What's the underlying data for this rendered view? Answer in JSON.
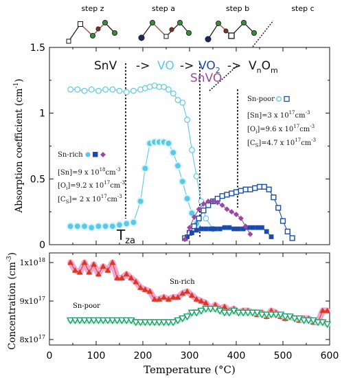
{
  "header": {
    "steps": [
      "step z",
      "step a",
      "step b",
      "step c"
    ]
  },
  "top_panel": {
    "reaction": {
      "snv": "SnV",
      "arrow1": "->",
      "vo": "VO",
      "arrow2": "->",
      "vo2": "VO",
      "vo2_sub": "2",
      "arrow3": "->",
      "vnom_v": "V",
      "vnom_n": "n",
      "vnom_o": "O",
      "vnom_m": "m",
      "snvo": "SnVO",
      "tza_t": "T",
      "tza_sub": "za"
    },
    "sn_poor_block": {
      "title": "Sn-poor",
      "lines": [
        "[Sn]=3 x 10",
        "[O",
        "]=9.6 x 10",
        "[C",
        "]=4.7 x 10"
      ],
      "sup": "17",
      "unit": "cm",
      "unit_sup": "-3",
      "oi_sub": "i",
      "cs_sub": "S"
    },
    "sn_rich_block": {
      "title": "Sn-rich",
      "sn_line": "[Sn]=9 x 10",
      "sn_sup": "18",
      "oi_line": "[O",
      "oi_sub": "i",
      "oi_rest": "]=9.2 x 10",
      "oi_sup": "17",
      "cs_line": "[C",
      "cs_sub": "S",
      "cs_rest": "]= 2 x 10",
      "cs_sup": "17",
      "unit": "cm",
      "unit_sup": "-3"
    }
  },
  "bottom_panel": {
    "label_rich": "Sn-rich",
    "label_poor": "Sn-poor"
  },
  "chart_data": [
    {
      "type": "scatter",
      "panel": "top",
      "xlim": [
        0,
        600
      ],
      "ylim": [
        0,
        1.5
      ],
      "yticks": [
        "0",
        "0.5",
        "1",
        "1.5"
      ],
      "ylabel": "Absorption coefficient  (cm",
      "ylabel_sup": "-1",
      "ylabel_end": ")",
      "series": [
        {
          "name": "VO Sn-poor",
          "color": "#5bc8e6",
          "marker": "open-circle",
          "x": [
            45,
            60,
            75,
            90,
            105,
            120,
            135,
            150,
            165,
            180,
            195,
            205,
            215,
            225,
            235,
            245,
            255,
            265,
            275,
            285,
            295,
            305,
            315,
            325,
            335,
            350
          ],
          "y": [
            1.18,
            1.18,
            1.17,
            1.18,
            1.17,
            1.18,
            1.18,
            1.17,
            1.16,
            1.17,
            1.18,
            1.19,
            1.2,
            1.21,
            1.2,
            1.2,
            1.18,
            1.15,
            1.1,
            1.08,
            0.95,
            0.72,
            0.52,
            0.33,
            0.2,
            0.12
          ]
        },
        {
          "name": "VO Sn-rich",
          "color": "#5bc8e6",
          "marker": "filled-circle",
          "x": [
            45,
            60,
            75,
            90,
            105,
            120,
            135,
            150,
            165,
            180,
            195,
            205,
            215,
            225,
            235,
            245,
            255,
            265,
            275,
            285,
            295,
            305,
            315
          ],
          "y": [
            0.14,
            0.14,
            0.14,
            0.13,
            0.14,
            0.14,
            0.14,
            0.15,
            0.16,
            0.17,
            0.33,
            0.58,
            0.77,
            0.78,
            0.78,
            0.78,
            0.77,
            0.7,
            0.6,
            0.48,
            0.35,
            0.24,
            0.16
          ]
        },
        {
          "name": "VO2 Sn-poor",
          "color": "#1b4ba8",
          "marker": "open-square",
          "x": [
            290,
            300,
            310,
            320,
            330,
            340,
            350,
            360,
            370,
            380,
            390,
            400,
            410,
            420,
            430,
            440,
            450,
            460,
            470,
            480,
            490,
            500,
            510,
            520
          ],
          "y": [
            0.05,
            0.09,
            0.14,
            0.2,
            0.26,
            0.3,
            0.33,
            0.35,
            0.37,
            0.38,
            0.39,
            0.4,
            0.41,
            0.42,
            0.42,
            0.43,
            0.44,
            0.44,
            0.42,
            0.36,
            0.28,
            0.18,
            0.1,
            0.05
          ]
        },
        {
          "name": "VO2 Sn-rich",
          "color": "#1b4ba8",
          "marker": "filled-square",
          "x": [
            295,
            305,
            315,
            325,
            335,
            345,
            355,
            365,
            375,
            385,
            395,
            405,
            415,
            425,
            435,
            445,
            455,
            465,
            475
          ],
          "y": [
            0.06,
            0.09,
            0.11,
            0.12,
            0.12,
            0.12,
            0.12,
            0.12,
            0.13,
            0.13,
            0.12,
            0.12,
            0.12,
            0.13,
            0.13,
            0.13,
            0.13,
            0.1,
            0.06
          ]
        },
        {
          "name": "SnVO",
          "color": "#9a4a9e",
          "marker": "filled-diamond",
          "x": [
            290,
            300,
            310,
            320,
            330,
            340,
            350,
            360,
            370,
            380,
            390,
            400,
            410,
            420,
            430
          ],
          "y": [
            0.04,
            0.13,
            0.21,
            0.27,
            0.31,
            0.33,
            0.33,
            0.32,
            0.3,
            0.27,
            0.25,
            0.23,
            0.2,
            0.14,
            0.08
          ]
        }
      ]
    },
    {
      "type": "line",
      "panel": "bottom",
      "xlim": [
        0,
        600
      ],
      "xticks": [
        "0",
        "100",
        "200",
        "300",
        "400",
        "500",
        "600"
      ],
      "xlabel": "Temperature (°C)",
      "ylabel": "Concentration  (cm",
      "ylabel_sup": "-3",
      "ylabel_end": ")",
      "yticks": [
        {
          "base": "8x10",
          "sup": "17"
        },
        {
          "base": "9x10",
          "sup": "17"
        },
        {
          "base": "1x10",
          "sup": "18"
        }
      ],
      "ylim": [
        8e+17,
        1e+18
      ],
      "series": [
        {
          "name": "Sn-rich",
          "color": "#d83a1f",
          "halo": "#f2a6cf",
          "marker": "triangle-up",
          "x": [
            45,
            55,
            65,
            75,
            85,
            95,
            105,
            115,
            125,
            135,
            145,
            155,
            165,
            175,
            185,
            195,
            205,
            215,
            225,
            235,
            245,
            255,
            265,
            275,
            285,
            295,
            305,
            315,
            325,
            335,
            345,
            355,
            365,
            375,
            385,
            395,
            405,
            415,
            425,
            435,
            445,
            455,
            465,
            475,
            485,
            495,
            505,
            515,
            525,
            535,
            545,
            555,
            565,
            575,
            585,
            595
          ],
          "y": [
            1e+18,
            9.8e+17,
            9.75e+17,
            1e+18,
            9.75e+17,
            9.95e+17,
            9.7e+17,
            9.9e+17,
            9.8e+17,
            1e+18,
            9.6e+17,
            9.6e+17,
            9.7e+17,
            9.6e+17,
            9.5e+17,
            9.35e+17,
            9.3e+17,
            9.25e+17,
            9.05e+17,
            9.05e+17,
            9.1e+17,
            9.05e+17,
            9.1e+17,
            9.1e+17,
            9.2e+17,
            9.25e+17,
            9.15e+17,
            9.05e+17,
            9e+17,
            8.95e+17,
            8.8e+17,
            8.9e+17,
            8.8e+17,
            8.85e+17,
            8.75e+17,
            8.8e+17,
            8.7e+17,
            8.75e+17,
            8.75e+17,
            8.7e+17,
            8.65e+17,
            8.7e+17,
            8.6e+17,
            8.75e+17,
            8.7e+17,
            8.6e+17,
            8.55e+17,
            8.6e+17,
            8.55e+17,
            8.5e+17,
            8.55e+17,
            8.55e+17,
            8.45e+17,
            8.45e+17,
            8.75e+17,
            8.75e+17
          ]
        },
        {
          "name": "Sn-poor",
          "color": "#1a9a6a",
          "halo": "#a6eabd",
          "marker": "triangle-down",
          "x": [
            45,
            55,
            65,
            75,
            85,
            95,
            105,
            115,
            125,
            135,
            145,
            155,
            165,
            175,
            185,
            195,
            205,
            215,
            225,
            235,
            245,
            255,
            265,
            275,
            285,
            295,
            305,
            315,
            325,
            335,
            345,
            355,
            365,
            375,
            385,
            395,
            405,
            415,
            425,
            435,
            445,
            455,
            465,
            475,
            485,
            495,
            505,
            515,
            525,
            535,
            545,
            555,
            565,
            575,
            585,
            595
          ],
          "y": [
            8.5e+17,
            8.5e+17,
            8.5e+17,
            8.5e+17,
            8.5e+17,
            8.5e+17,
            8.5e+17,
            8.5e+17,
            8.5e+17,
            8.5e+17,
            8.5e+17,
            8.5e+17,
            8.5e+17,
            8.5e+17,
            8.45e+17,
            8.45e+17,
            8.45e+17,
            8.45e+17,
            8.45e+17,
            8.45e+17,
            8.45e+17,
            8.45e+17,
            8.45e+17,
            8.5e+17,
            8.55e+17,
            8.6e+17,
            8.7e+17,
            8.7e+17,
            8.75e+17,
            8.8e+17,
            8.8e+17,
            8.8e+17,
            8.75e+17,
            8.7e+17,
            8.7e+17,
            8.75e+17,
            8.7e+17,
            8.7e+17,
            8.7e+17,
            8.7e+17,
            8.7e+17,
            8.65e+17,
            8.65e+17,
            8.65e+17,
            8.65e+17,
            8.65e+17,
            8.6e+17,
            8.6e+17,
            8.55e+17,
            8.55e+17,
            8.5e+17,
            8.5e+17,
            8.5e+17,
            8.45e+17,
            8.45e+17,
            8.4e+17
          ]
        }
      ]
    }
  ]
}
